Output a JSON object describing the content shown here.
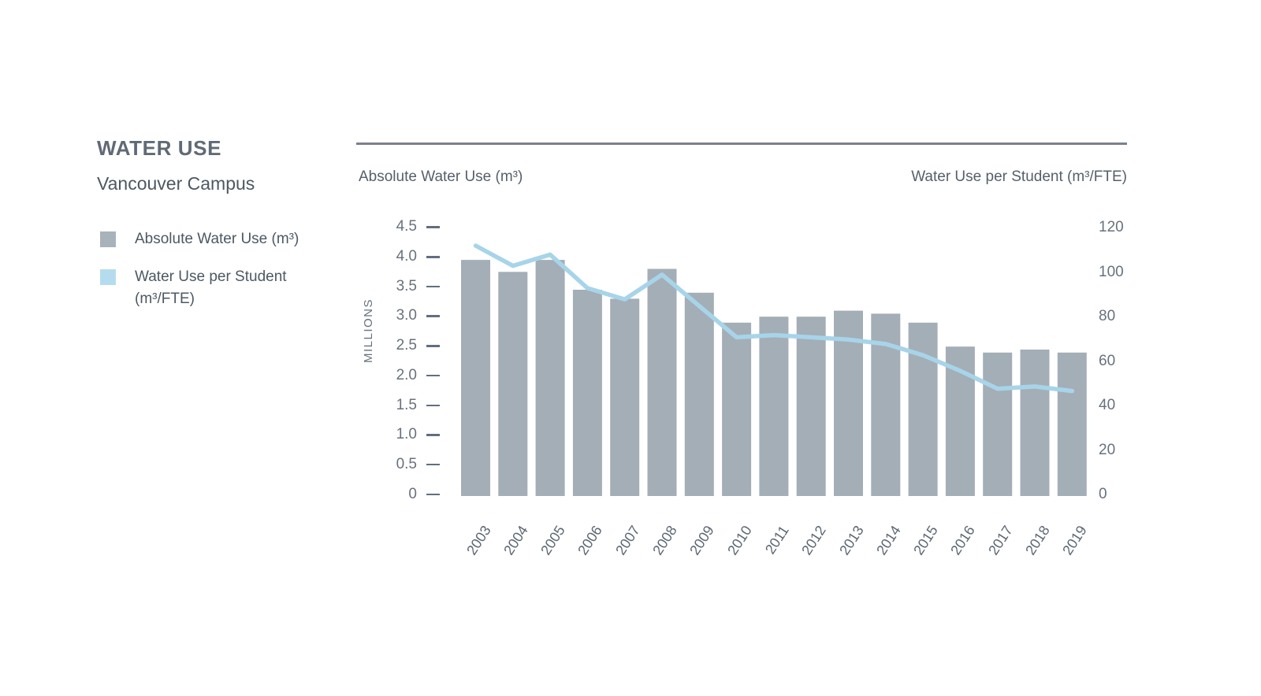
{
  "page": {
    "title": "WATER USE",
    "subtitle": "Vancouver Campus"
  },
  "legend": {
    "position": "left",
    "items": [
      {
        "label": "Absolute Water Use (m³)",
        "color": "#a8b2bb",
        "shape": "square"
      },
      {
        "label": "Water Use per Student (m³/FTE)",
        "color": "#b5dcee",
        "shape": "square"
      }
    ]
  },
  "chart_data": {
    "type": "combo-bar-line",
    "categories": [
      "2003",
      "2004",
      "2005",
      "2006",
      "2007",
      "2008",
      "2009",
      "2010",
      "2011",
      "2012",
      "2013",
      "2014",
      "2015",
      "2016",
      "2017",
      "2018",
      "2019"
    ],
    "series": [
      {
        "name": "Absolute Water Use (m³)",
        "type": "bar",
        "axis": "left",
        "color": "#a4aeb7",
        "values": [
          3.95,
          3.75,
          3.95,
          3.45,
          3.3,
          3.8,
          3.4,
          2.9,
          3.0,
          3.0,
          3.1,
          3.05,
          2.9,
          2.5,
          2.4,
          2.45,
          2.4
        ]
      },
      {
        "name": "Water Use per Student (m³/FTE)",
        "type": "line",
        "axis": "right",
        "color": "#a7d4e9",
        "values": [
          112,
          103,
          108,
          93,
          88,
          99,
          85,
          71,
          72,
          71,
          70,
          68,
          63,
          56,
          48,
          49,
          47
        ]
      }
    ],
    "left_axis": {
      "title": "Absolute Water Use (m³)",
      "unit_label": "MILLIONS",
      "ticks": [
        "4.5",
        "4.0",
        "3.5",
        "3.0",
        "2.5",
        "2.0",
        "1.5",
        "1.0",
        "0.5",
        "0"
      ],
      "min": 0,
      "max": 4.5
    },
    "right_axis": {
      "title": "Water Use per Student (m³/FTE)",
      "ticks": [
        "120",
        "100",
        "80",
        "60",
        "40",
        "20",
        "0"
      ],
      "min": 0,
      "max": 120
    },
    "grid": false,
    "legend_position": "left"
  }
}
